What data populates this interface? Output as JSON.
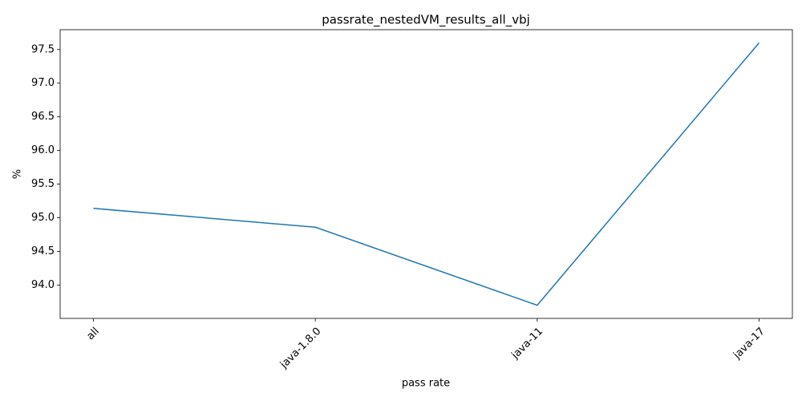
{
  "chart_data": {
    "type": "line",
    "title": "passrate_nestedVM_results_all_vbj",
    "xlabel": "pass rate",
    "ylabel": "%",
    "categories": [
      "all",
      "java-1.8.0",
      "java-11",
      "java-17"
    ],
    "series": [
      {
        "name": "passrate",
        "color": "#1f77b4",
        "values": [
          95.14,
          94.86,
          93.7,
          97.6
        ]
      }
    ],
    "ylim": [
      93.505,
      97.795
    ],
    "yticks": [
      {
        "value": 94,
        "label": "94.0"
      },
      94.5,
      {
        "value": 95,
        "label": "95.0"
      },
      95.5,
      {
        "value": 96,
        "label": "96.0"
      },
      96.5,
      {
        "value": 97,
        "label": "97.0"
      },
      97.5
    ],
    "grid": false
  }
}
